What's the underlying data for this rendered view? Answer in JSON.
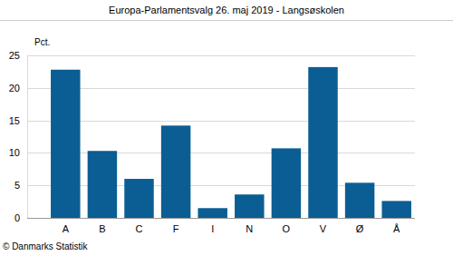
{
  "chart_data": {
    "type": "bar",
    "title": "Europa-Parlamentsvalg 26. maj 2019 - Langsøskolen",
    "y_label": "Pct.",
    "annotations": [
      "© Danmarks Statistik"
    ],
    "categories": [
      "A",
      "B",
      "C",
      "F",
      "I",
      "N",
      "O",
      "V",
      "Ø",
      "Å"
    ],
    "values": [
      22.8,
      10.3,
      6.0,
      14.2,
      1.5,
      3.6,
      10.7,
      23.2,
      5.4,
      2.6
    ],
    "color": "#0b5e93",
    "ylim": [
      0,
      25
    ],
    "yticks": [
      0,
      5,
      10,
      15,
      20,
      25
    ],
    "grid": true
  }
}
